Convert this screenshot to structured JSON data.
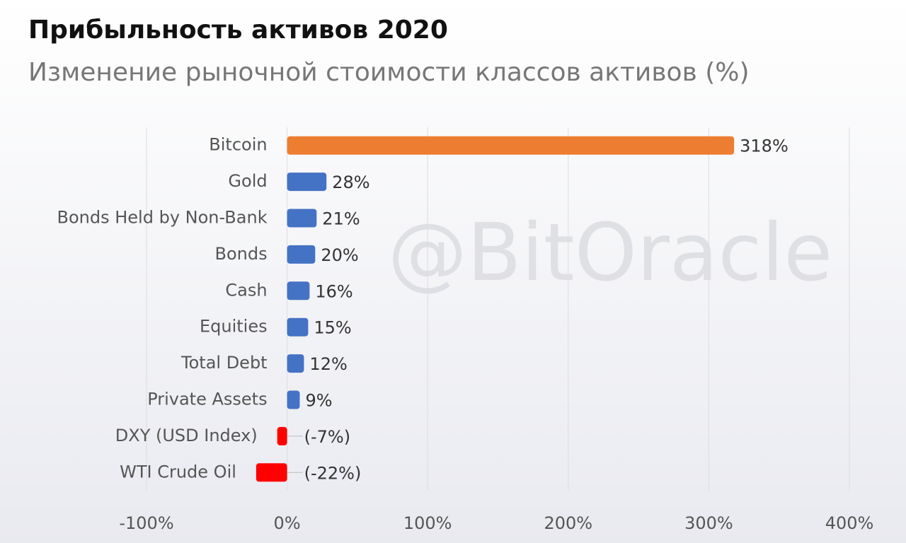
{
  "chart_data": {
    "type": "hbar",
    "title": "Прибыльность активов 2020",
    "subtitle": "Изменение рыночной стоимости классов активов (%)",
    "watermark": "@BitOracle",
    "categories": [
      "Bitcoin",
      "Gold",
      "Bonds Held by Non-Bank",
      "Bonds",
      "Cash",
      "Equities",
      "Total Debt",
      "Private Assets",
      "DXY (USD Index)",
      "WTI Crude Oil"
    ],
    "values": [
      318,
      28,
      21,
      20,
      16,
      15,
      12,
      9,
      -7,
      -22
    ],
    "value_labels": [
      "318%",
      "28%",
      "21%",
      "20%",
      "16%",
      "15%",
      "12%",
      "9%",
      "(-7%)",
      "(-22%)"
    ],
    "colors": [
      "#ed7d31",
      "#4472c4",
      "#4472c4",
      "#4472c4",
      "#4472c4",
      "#4472c4",
      "#4472c4",
      "#4472c4",
      "#ff0000",
      "#ff0000"
    ],
    "xlim": [
      -100,
      400
    ],
    "xticks": [
      {
        "value": -100,
        "label": "-100%"
      },
      {
        "value": 0,
        "label": "0%"
      },
      {
        "value": 100,
        "label": "100%"
      },
      {
        "value": 200,
        "label": "200%"
      },
      {
        "value": 300,
        "label": "300%"
      },
      {
        "value": 400,
        "label": "400%"
      }
    ],
    "grid": true
  }
}
